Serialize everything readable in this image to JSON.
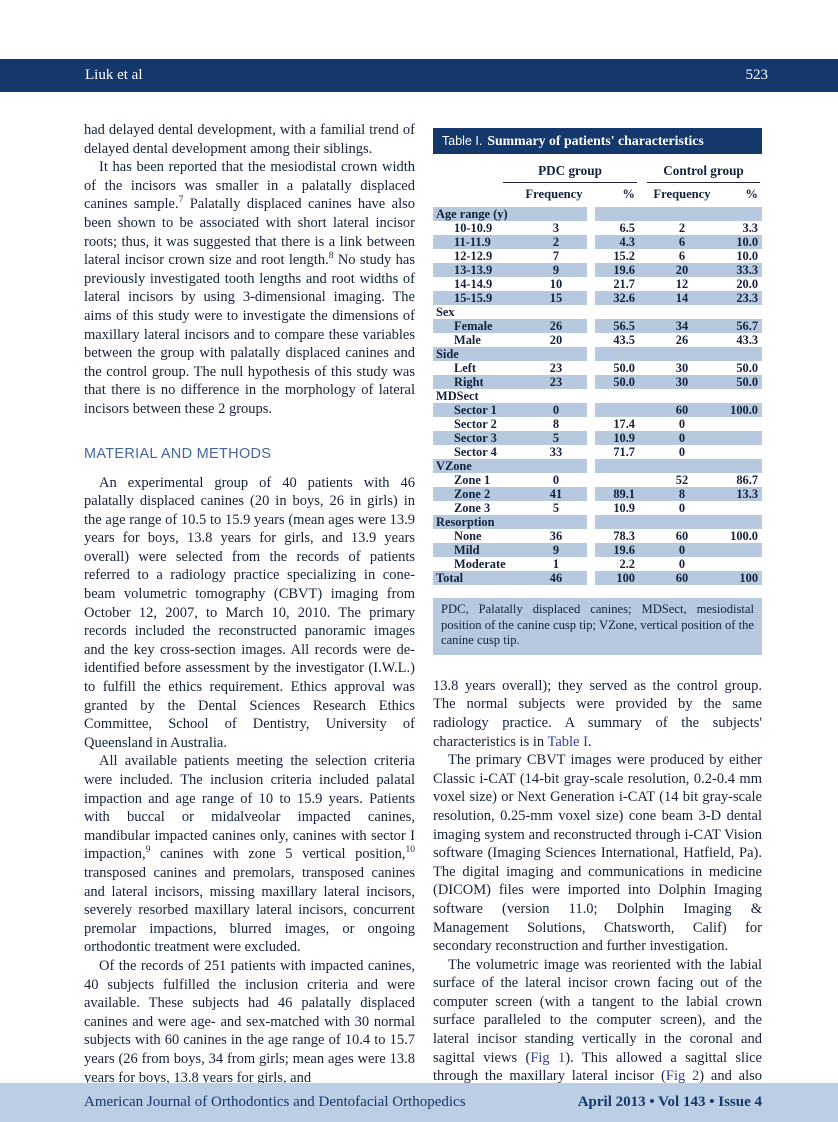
{
  "header": {
    "author": "Liuk et al",
    "page": "523"
  },
  "colors": {
    "navy": "#14386c",
    "row_shade": "#b7c9df",
    "footer_band": "#bccee3",
    "heading_blue": "#44679b",
    "link_blue": "#2f3d9e",
    "ink": "#14213d"
  },
  "left_column": {
    "para1": [
      {
        "t": "had delayed dental development, with a familial trend of delayed dental development among their siblings."
      }
    ],
    "para2": [
      {
        "t": "It has been reported that the mesiodistal crown width of the incisors was smaller in a palatally displaced canines sample."
      },
      {
        "sup": "7"
      },
      {
        "t": " Palatally displaced canines have also been shown to be associated with short lateral incisor roots; thus, it was suggested that there is a link between lateral incisor crown size and root length."
      },
      {
        "sup": "8"
      },
      {
        "t": " No study has previously investigated tooth lengths and root widths of lateral incisors by using 3-dimensional imaging. The aims of this study were to investigate the dimensions of maxillary lateral incisors and to compare these variables between the group with palatally displaced canines and the control group. The null hypothesis of this study was that there is no difference in the morphology of lateral incisors between these 2 groups."
      }
    ],
    "section_heading": "MATERIAL AND METHODS",
    "para3": [
      {
        "t": "An experimental group of 40 patients with 46 palatally displaced canines (20 in boys, 26 in girls) in the age range of 10.5 to 15.9 years (mean ages were 13.9 years for boys, 13.8 years for girls, and 13.9 years overall) were selected from the records of patients referred to a radiology practice specializing in cone-beam volumetric tomography (CBVT) imaging from October 12, 2007, to March 10, 2010. The primary records included the reconstructed panoramic images and the key cross-section images. All records were de-identified before assessment by the investigator (I.W.L.) to fulfill the ethics requirement. Ethics approval was granted by the Dental Sciences Research Ethics Committee, School of Dentistry, University of Queensland in Australia."
      }
    ],
    "para4": [
      {
        "t": "All available patients meeting the selection criteria were included. The inclusion criteria included palatal impaction and age range of 10 to 15.9 years. Patients with buccal or midalveolar impacted canines, mandibular impacted canines only, canines with sector I impaction,"
      },
      {
        "sup": "9"
      },
      {
        "t": " canines with zone 5 vertical position,"
      },
      {
        "sup": "10"
      },
      {
        "t": " transposed canines and premolars, transposed canines and lateral incisors, missing maxillary lateral incisors, severely resorbed maxillary lateral incisors, concurrent premolar impactions, blurred images, or ongoing orthodontic treatment were excluded."
      }
    ],
    "para5": [
      {
        "t": "Of the records of 251 patients with impacted canines, 40 subjects fulfilled the inclusion criteria and were available. These subjects had 46 palatally displaced canines and were age- and sex-matched with 30 normal subjects with 60 canines in the age range of 10.4 to 15.7 years (26 from boys, 34 from girls; mean ages were 13.8 years for boys, 13.8 years for girls, and"
      }
    ]
  },
  "table": {
    "title_label": "Table I.",
    "title_text": "Summary of patients' characteristics",
    "group_headers": [
      "PDC group",
      "Control group"
    ],
    "sub_headers": [
      "Frequency",
      "%",
      "Frequency",
      "%"
    ],
    "rows": [
      {
        "label": "Age range (y)",
        "type": "section",
        "values": [
          "",
          "",
          "",
          ""
        ],
        "shaded": true
      },
      {
        "label": "10-10.9",
        "type": "data",
        "values": [
          "3",
          "6.5",
          "2",
          "3.3"
        ],
        "shaded": false
      },
      {
        "label": "11-11.9",
        "type": "data",
        "values": [
          "2",
          "4.3",
          "6",
          "10.0"
        ],
        "shaded": true
      },
      {
        "label": "12-12.9",
        "type": "data",
        "values": [
          "7",
          "15.2",
          "6",
          "10.0"
        ],
        "shaded": false
      },
      {
        "label": "13-13.9",
        "type": "data",
        "values": [
          "9",
          "19.6",
          "20",
          "33.3"
        ],
        "shaded": true
      },
      {
        "label": "14-14.9",
        "type": "data",
        "values": [
          "10",
          "21.7",
          "12",
          "20.0"
        ],
        "shaded": false
      },
      {
        "label": "15-15.9",
        "type": "data",
        "values": [
          "15",
          "32.6",
          "14",
          "23.3"
        ],
        "shaded": true
      },
      {
        "label": "Sex",
        "type": "section",
        "values": [
          "",
          "",
          "",
          ""
        ],
        "shaded": false
      },
      {
        "label": "Female",
        "type": "data",
        "values": [
          "26",
          "56.5",
          "34",
          "56.7"
        ],
        "shaded": true
      },
      {
        "label": "Male",
        "type": "data",
        "values": [
          "20",
          "43.5",
          "26",
          "43.3"
        ],
        "shaded": false
      },
      {
        "label": "Side",
        "type": "section",
        "values": [
          "",
          "",
          "",
          ""
        ],
        "shaded": true
      },
      {
        "label": "Left",
        "type": "data",
        "values": [
          "23",
          "50.0",
          "30",
          "50.0"
        ],
        "shaded": false
      },
      {
        "label": "Right",
        "type": "data",
        "values": [
          "23",
          "50.0",
          "30",
          "50.0"
        ],
        "shaded": true
      },
      {
        "label": "MDSect",
        "type": "section",
        "values": [
          "",
          "",
          "",
          ""
        ],
        "shaded": false
      },
      {
        "label": "Sector 1",
        "type": "data",
        "values": [
          "0",
          "",
          "60",
          "100.0"
        ],
        "shaded": true
      },
      {
        "label": "Sector 2",
        "type": "data",
        "values": [
          "8",
          "17.4",
          "0",
          ""
        ],
        "shaded": false
      },
      {
        "label": "Sector 3",
        "type": "data",
        "values": [
          "5",
          "10.9",
          "0",
          ""
        ],
        "shaded": true
      },
      {
        "label": "Sector 4",
        "type": "data",
        "values": [
          "33",
          "71.7",
          "0",
          ""
        ],
        "shaded": false
      },
      {
        "label": "VZone",
        "type": "section",
        "values": [
          "",
          "",
          "",
          ""
        ],
        "shaded": true
      },
      {
        "label": "Zone 1",
        "type": "data",
        "values": [
          "0",
          "",
          "52",
          "86.7"
        ],
        "shaded": false
      },
      {
        "label": "Zone 2",
        "type": "data",
        "values": [
          "41",
          "89.1",
          "8",
          "13.3"
        ],
        "shaded": true
      },
      {
        "label": "Zone 3",
        "type": "data",
        "values": [
          "5",
          "10.9",
          "0",
          ""
        ],
        "shaded": false
      },
      {
        "label": "Resorption",
        "type": "section",
        "values": [
          "",
          "",
          "",
          ""
        ],
        "shaded": true
      },
      {
        "label": "None",
        "type": "data",
        "values": [
          "36",
          "78.3",
          "60",
          "100.0"
        ],
        "shaded": false
      },
      {
        "label": "Mild",
        "type": "data",
        "values": [
          "9",
          "19.6",
          "0",
          ""
        ],
        "shaded": true
      },
      {
        "label": "Moderate",
        "type": "data",
        "values": [
          "1",
          "2.2",
          "0",
          ""
        ],
        "shaded": false
      },
      {
        "label": "Total",
        "type": "total",
        "values": [
          "46",
          "100",
          "60",
          "100"
        ],
        "shaded": true
      }
    ],
    "footnote": "PDC, Palatally displaced canines; MDSect, mesiodistal position of the canine cusp tip; VZone, vertical position of the canine cusp tip."
  },
  "right_column": {
    "para1": [
      {
        "t": "13.8 years overall); they served as the control group. The normal subjects were provided by the same radiology practice. A summary of the subjects' characteristics is in "
      },
      {
        "link": "Table I"
      },
      {
        "t": "."
      }
    ],
    "para2": [
      {
        "t": "The primary CBVT images were produced by either Classic i-CAT (14-bit gray-scale resolution, 0.2-0.4 mm voxel size) or Next Generation i-CAT (14 bit gray-scale resolution, 0.25-mm voxel size) cone beam 3-D dental imaging system and reconstructed through i-CAT Vision software (Imaging Sciences International, Hatfield, Pa). The digital imaging and communications in medicine (DICOM) files were imported into Dolphin Imaging software (version 11.0; Dolphin Imaging & Management Solutions, Chatsworth, Calif) for secondary reconstruction and further investigation."
      }
    ],
    "para3": [
      {
        "t": "The volumetric image was reoriented with the labial surface of the lateral incisor crown facing out of the computer screen (with a tangent to the labial crown surface paralleled to the computer screen), and the lateral incisor standing vertically in the coronal and sagittal views ("
      },
      {
        "link": "Fig 1"
      },
      {
        "t": "). This allowed a sagittal slice through the maxillary lateral incisor ("
      },
      {
        "link": "Fig 2"
      },
      {
        "t": ") and also axial slices across the root at"
      }
    ]
  },
  "footer": {
    "journal": "American Journal of Orthodontics and Dentofacial Orthopedics",
    "issue": "April 2013 • Vol 143 • Issue 4"
  }
}
